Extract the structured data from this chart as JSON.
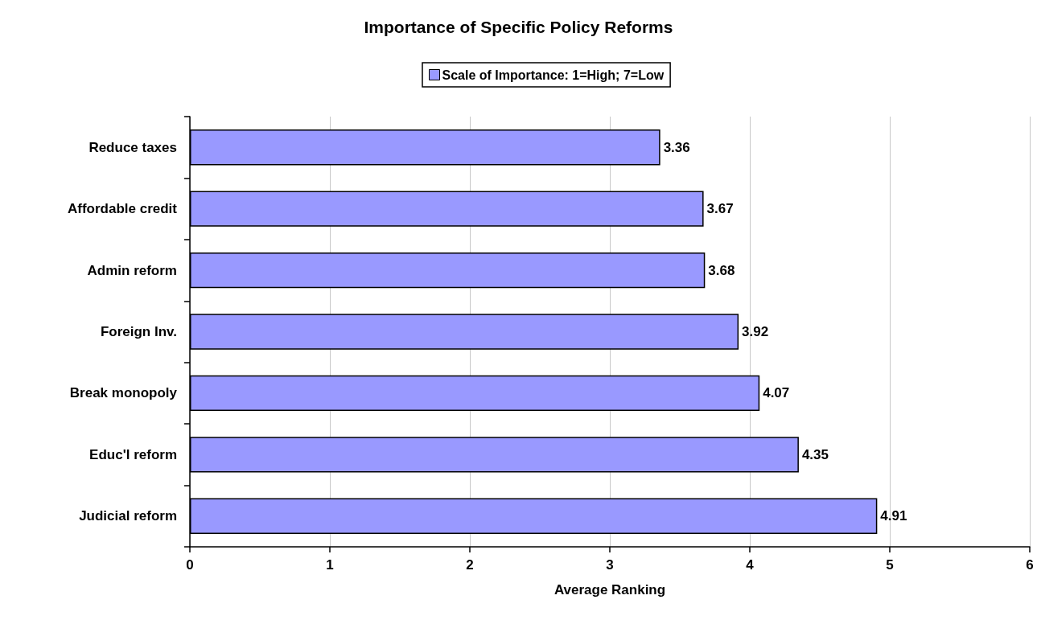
{
  "chart_data": {
    "type": "bar",
    "orientation": "horizontal",
    "title": "Importance of Specific Policy Reforms",
    "xlabel": "Average Ranking",
    "categories": [
      "Reduce taxes",
      "Affordable credit",
      "Admin reform",
      "Foreign Inv.",
      "Break monopoly",
      "Educ'l reform",
      "Judicial reform"
    ],
    "series": [
      {
        "name": "Scale of Importance: 1=High; 7=Low",
        "color": "#9999ff",
        "values": [
          3.36,
          3.67,
          3.68,
          3.92,
          4.07,
          4.35,
          4.91
        ]
      }
    ],
    "xlim": [
      0,
      6
    ],
    "xticks": [
      0,
      1,
      2,
      3,
      4,
      5,
      6
    ],
    "grid": "x",
    "legend": "top",
    "data_labels": true
  }
}
